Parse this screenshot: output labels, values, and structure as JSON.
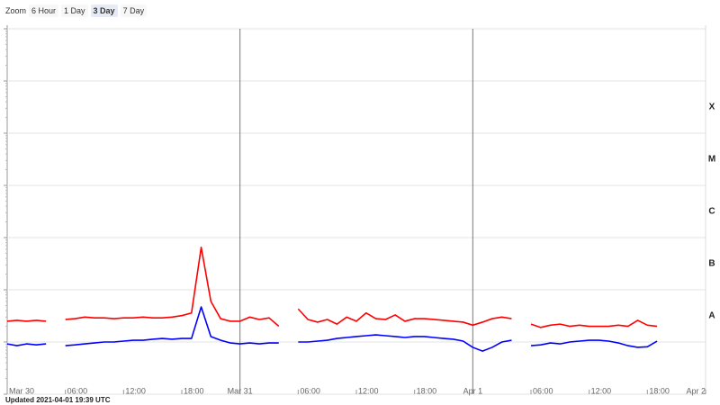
{
  "toolbar": {
    "label": "Zoom",
    "buttons": [
      "6 Hour",
      "1 Day",
      "3 Day",
      "7 Day"
    ],
    "selected": 2
  },
  "footer": "Updated 2021-04-01 19:39 UTC",
  "chart_data": {
    "type": "line",
    "log_y": true,
    "grid": true,
    "xlim": [
      "Mar 30 00:00",
      "Apr 2 00:00"
    ],
    "xticks": [
      {
        "value": "Mar 30 00:00",
        "label": "Mar 30"
      },
      {
        "value": "Mar 30 06:00",
        "label": "06:00"
      },
      {
        "value": "Mar 30 12:00",
        "label": "12:00"
      },
      {
        "value": "Mar 30 18:00",
        "label": "18:00"
      },
      {
        "value": "Mar 31 00:00",
        "label": "Mar 31"
      },
      {
        "value": "Mar 31 06:00",
        "label": "06:00"
      },
      {
        "value": "Mar 31 12:00",
        "label": "12:00"
      },
      {
        "value": "Mar 31 18:00",
        "label": "18:00"
      },
      {
        "value": "Apr 1 00:00",
        "label": "Apr 1"
      },
      {
        "value": "Apr 1 06:00",
        "label": "06:00"
      },
      {
        "value": "Apr 1 12:00",
        "label": "12:00"
      },
      {
        "value": "Apr 1 18:00",
        "label": "18:00"
      },
      {
        "value": "Apr 2 00:00",
        "label": "Apr 2"
      }
    ],
    "ylim": [
      1e-09,
      0.01
    ],
    "yticks": [
      1e-09,
      1e-08,
      1e-07,
      1e-06,
      1e-05,
      0.0001,
      0.001,
      0.01
    ],
    "bands": [
      {
        "label": "A",
        "from": 1e-08,
        "to": 1e-07
      },
      {
        "label": "B",
        "from": 1e-07,
        "to": 1e-06
      },
      {
        "label": "C",
        "from": 1e-06,
        "to": 1e-05
      },
      {
        "label": "M",
        "from": 1e-05,
        "to": 0.0001
      },
      {
        "label": "X",
        "from": 0.0001,
        "to": 0.001
      }
    ],
    "x": [
      "Mar 30 00:00",
      "Mar 30 01:00",
      "Mar 30 02:00",
      "Mar 30 03:00",
      "Mar 30 04:00",
      "Mar 30 05:00",
      "Mar 30 06:00",
      "Mar 30 07:00",
      "Mar 30 08:00",
      "Mar 30 09:00",
      "Mar 30 10:00",
      "Mar 30 11:00",
      "Mar 30 12:00",
      "Mar 30 13:00",
      "Mar 30 14:00",
      "Mar 30 15:00",
      "Mar 30 16:00",
      "Mar 30 17:00",
      "Mar 30 18:00",
      "Mar 30 19:00",
      "Mar 30 20:00",
      "Mar 30 21:00",
      "Mar 30 22:00",
      "Mar 30 23:00",
      "Mar 31 00:00",
      "Mar 31 01:00",
      "Mar 31 02:00",
      "Mar 31 03:00",
      "Mar 31 04:00",
      "Mar 31 05:00",
      "Mar 31 06:00",
      "Mar 31 07:00",
      "Mar 31 08:00",
      "Mar 31 09:00",
      "Mar 31 10:00",
      "Mar 31 11:00",
      "Mar 31 12:00",
      "Mar 31 13:00",
      "Mar 31 14:00",
      "Mar 31 15:00",
      "Mar 31 16:00",
      "Mar 31 17:00",
      "Mar 31 18:00",
      "Mar 31 19:00",
      "Mar 31 20:00",
      "Mar 31 21:00",
      "Mar 31 22:00",
      "Mar 31 23:00",
      "Apr 1 00:00",
      "Apr 1 01:00",
      "Apr 1 02:00",
      "Apr 1 03:00",
      "Apr 1 04:00",
      "Apr 1 05:00",
      "Apr 1 06:00",
      "Apr 1 07:00",
      "Apr 1 08:00",
      "Apr 1 09:00",
      "Apr 1 10:00",
      "Apr 1 11:00",
      "Apr 1 12:00",
      "Apr 1 13:00",
      "Apr 1 14:00",
      "Apr 1 15:00",
      "Apr 1 16:00",
      "Apr 1 17:00",
      "Apr 1 18:00",
      "Apr 1 19:00"
    ],
    "series": [
      {
        "color": "#ff0000",
        "values": [
          2.5e-08,
          2.6e-08,
          2.5e-08,
          2.6e-08,
          2.5e-08,
          null,
          2.7e-08,
          2.8e-08,
          3e-08,
          2.9e-08,
          2.9e-08,
          2.8e-08,
          2.9e-08,
          2.9e-08,
          3e-08,
          2.9e-08,
          2.9e-08,
          3e-08,
          3.2e-08,
          3.6e-08,
          6.5e-07,
          6e-08,
          2.8e-08,
          2.5e-08,
          2.5e-08,
          3e-08,
          2.7e-08,
          2.9e-08,
          2e-08,
          null,
          4.3e-08,
          2.7e-08,
          2.4e-08,
          2.7e-08,
          2.2e-08,
          3e-08,
          2.5e-08,
          3.6e-08,
          2.8e-08,
          2.7e-08,
          3.3e-08,
          2.5e-08,
          2.8e-08,
          2.8e-08,
          2.7e-08,
          2.6e-08,
          2.5e-08,
          2.4e-08,
          2.1e-08,
          2.4e-08,
          2.8e-08,
          3e-08,
          2.8e-08,
          null,
          2.2e-08,
          1.9e-08,
          2.1e-08,
          2.2e-08,
          2e-08,
          2.1e-08,
          2e-08,
          2e-08,
          2e-08,
          2.1e-08,
          2e-08,
          2.6e-08,
          2.1e-08,
          2e-08
        ]
      },
      {
        "color": "#0000ff",
        "values": [
          9.2e-09,
          8.5e-09,
          9.2e-09,
          8.8e-09,
          9.2e-09,
          null,
          8.5e-09,
          8.8e-09,
          9.2e-09,
          9.6e-09,
          1e-08,
          1e-08,
          1.04e-08,
          1.08e-08,
          1.08e-08,
          1.13e-08,
          1.17e-08,
          1.13e-08,
          1.17e-08,
          1.17e-08,
          4.7e-08,
          1.27e-08,
          1.08e-08,
          9.6e-09,
          9.2e-09,
          9.6e-09,
          9.2e-09,
          9.6e-09,
          9.6e-09,
          null,
          1e-08,
          1e-08,
          1.04e-08,
          1.08e-08,
          1.17e-08,
          1.22e-08,
          1.27e-08,
          1.32e-08,
          1.37e-08,
          1.32e-08,
          1.27e-08,
          1.22e-08,
          1.27e-08,
          1.27e-08,
          1.22e-08,
          1.17e-08,
          1.13e-08,
          1.04e-08,
          7.9e-09,
          6.7e-09,
          7.9e-09,
          1e-08,
          1.08e-08,
          null,
          8.5e-09,
          8.8e-09,
          9.6e-09,
          9.2e-09,
          1e-08,
          1.04e-08,
          1.08e-08,
          1.08e-08,
          1.04e-08,
          9.6e-09,
          8.5e-09,
          7.9e-09,
          8.1e-09,
          1.04e-08
        ]
      }
    ]
  }
}
